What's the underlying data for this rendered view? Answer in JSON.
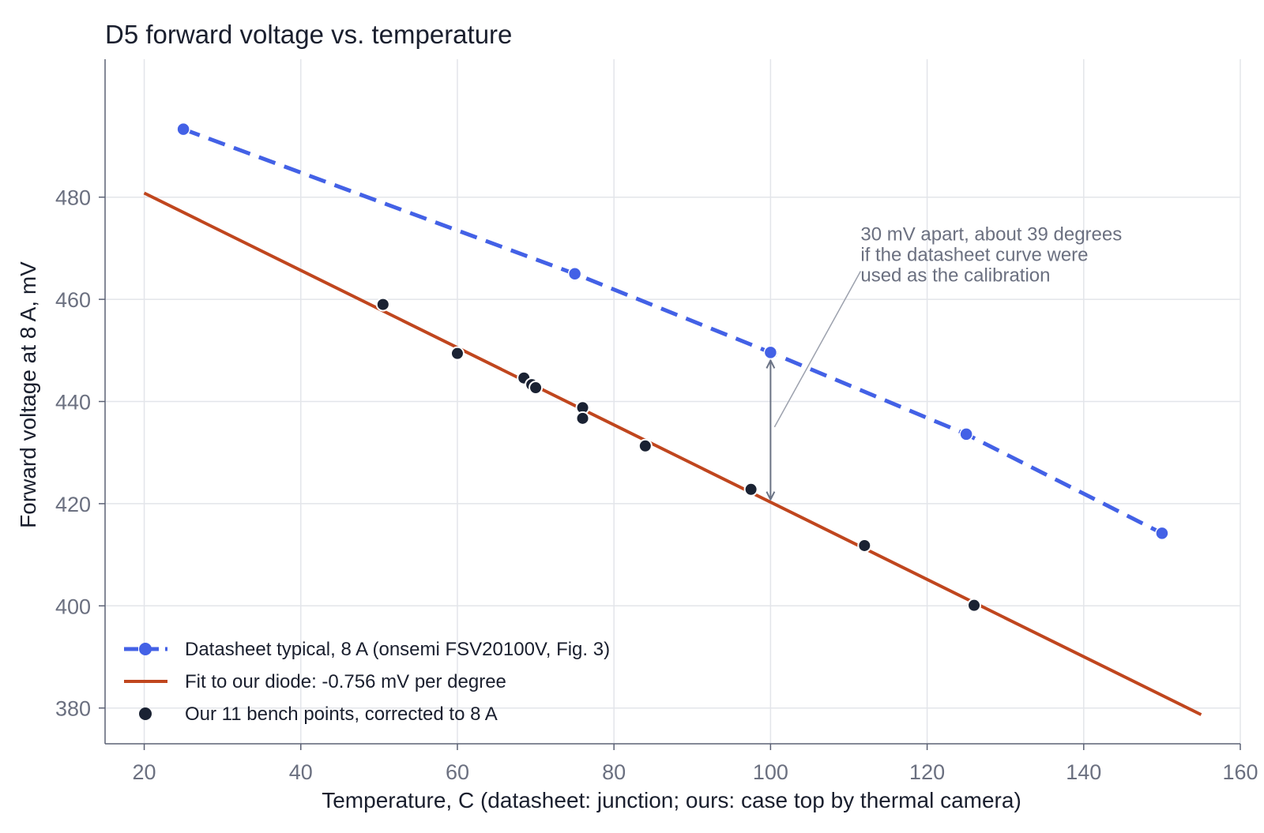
{
  "chart_data": {
    "type": "line",
    "title": "D5 forward voltage vs. temperature",
    "xlabel": "Temperature, C (datasheet: junction; ours: case top by thermal camera)",
    "ylabel": "Forward voltage at 8 A, mV",
    "xlim": [
      15,
      160
    ],
    "ylim": [
      373,
      507
    ],
    "xticks": [
      20,
      40,
      60,
      80,
      100,
      120,
      140,
      160
    ],
    "yticks": [
      380,
      400,
      420,
      440,
      460,
      480
    ],
    "grid": true,
    "legend_position": "bottom-left",
    "colors": {
      "datasheet": "#4361e6",
      "fit": "#c0461e",
      "points": "#1a2233",
      "annotation": "#6b7385"
    },
    "series": [
      {
        "name": "Datasheet typical, 8 A (onsemi FSV20100V, Fig. 3)",
        "kind": "line-dashed-markers",
        "x": [
          25,
          75,
          100,
          125,
          150
        ],
        "y": [
          493.3,
          465.0,
          449.6,
          433.6,
          414.2
        ]
      },
      {
        "name": "Fit to our diode: -0.756 mV per degree",
        "kind": "line",
        "x": [
          20,
          155
        ],
        "y": [
          480.8,
          378.7
        ]
      },
      {
        "name": "Our 11 bench points, corrected to 8 A",
        "kind": "scatter",
        "x": [
          50.5,
          60,
          68.5,
          69.5,
          70,
          76,
          76,
          84,
          97.5,
          112,
          126
        ],
        "y": [
          459.0,
          449.4,
          444.6,
          443.3,
          442.7,
          438.8,
          436.7,
          431.3,
          422.8,
          411.8,
          400.1
        ]
      }
    ],
    "annotation": {
      "lines": [
        "30 mV apart, about 39 degrees",
        "if the datasheet curve were",
        "used as the calibration"
      ],
      "arrow": {
        "x": 100,
        "y_from": 420.5,
        "y_to": 449.6
      },
      "pointer": {
        "from": [
          111.5,
          465.5
        ],
        "to": [
          100.5,
          435.0
        ]
      },
      "text_anchor": {
        "x": 111.5,
        "y": 471.5
      }
    }
  }
}
